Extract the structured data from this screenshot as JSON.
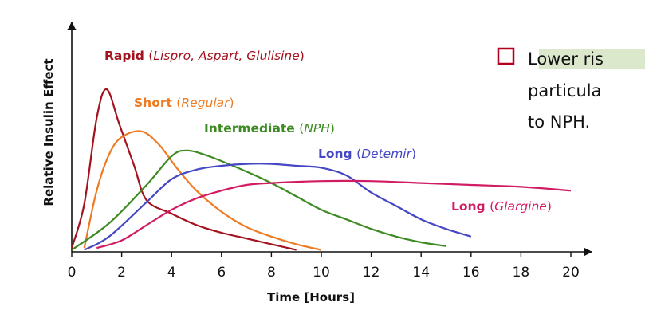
{
  "chart_data": {
    "type": "line",
    "xlabel": "Time [Hours]",
    "ylabel": "Relative Insulin Effect",
    "xlim": [
      0,
      20
    ],
    "ylim": [
      0,
      100
    ],
    "x_ticks": [
      "0",
      "2",
      "4",
      "6",
      "8",
      "10",
      "12",
      "14",
      "16",
      "18",
      "20"
    ],
    "grid": false,
    "series": [
      {
        "name": "Rapid",
        "sub": "Lispro, Aspart, Glulisine",
        "color": "#a3131f",
        "points": [
          [
            0,
            2
          ],
          [
            0.5,
            25
          ],
          [
            1,
            70
          ],
          [
            1.4,
            85
          ],
          [
            1.9,
            67
          ],
          [
            2.5,
            45
          ],
          [
            3,
            27
          ],
          [
            4,
            20
          ],
          [
            5,
            14
          ],
          [
            6,
            10
          ],
          [
            7,
            7
          ],
          [
            8,
            4
          ],
          [
            9,
            1
          ]
        ]
      },
      {
        "name": "Short",
        "sub": "Regular",
        "color": "#ee7a22",
        "points": [
          [
            0.5,
            2
          ],
          [
            1,
            32
          ],
          [
            1.5,
            51
          ],
          [
            2,
            60
          ],
          [
            2.8,
            63
          ],
          [
            3.5,
            56
          ],
          [
            4.2,
            44
          ],
          [
            5,
            32
          ],
          [
            6,
            21
          ],
          [
            7,
            13
          ],
          [
            8,
            8
          ],
          [
            9,
            4
          ],
          [
            10,
            1
          ]
        ]
      },
      {
        "name": "Intermediate",
        "sub": "NPH",
        "color": "#3d8a23",
        "points": [
          [
            0,
            1
          ],
          [
            1.5,
            15
          ],
          [
            3,
            35
          ],
          [
            4,
            50
          ],
          [
            4.6,
            53
          ],
          [
            5.5,
            50
          ],
          [
            7,
            42
          ],
          [
            8,
            36
          ],
          [
            9,
            29
          ],
          [
            10,
            22
          ],
          [
            11,
            17
          ],
          [
            12,
            12
          ],
          [
            13,
            8
          ],
          [
            14,
            5
          ],
          [
            15,
            3
          ]
        ]
      },
      {
        "name": "Long",
        "sub": "Detemir",
        "color": "#4547c4",
        "points": [
          [
            0.5,
            1
          ],
          [
            1.5,
            8
          ],
          [
            3,
            26
          ],
          [
            4,
            38
          ],
          [
            5,
            43
          ],
          [
            6,
            45
          ],
          [
            7,
            46
          ],
          [
            8,
            46
          ],
          [
            9,
            45
          ],
          [
            10,
            44
          ],
          [
            11,
            40
          ],
          [
            12,
            31
          ],
          [
            13,
            24
          ],
          [
            14,
            17
          ],
          [
            15,
            12
          ],
          [
            16,
            8
          ]
        ]
      },
      {
        "name": "Long",
        "sub": "Glargine",
        "color": "#d11c64",
        "points": [
          [
            1,
            2
          ],
          [
            2,
            6
          ],
          [
            3,
            14
          ],
          [
            4,
            22
          ],
          [
            5,
            28
          ],
          [
            6,
            32
          ],
          [
            7,
            35
          ],
          [
            8,
            36
          ],
          [
            10,
            37
          ],
          [
            12,
            37
          ],
          [
            14,
            36
          ],
          [
            16,
            35
          ],
          [
            18,
            34
          ],
          [
            20,
            32
          ]
        ]
      }
    ]
  },
  "side_note": {
    "line1": "Lower ris",
    "line2": "particula",
    "line3": "to NPH.",
    "accent_color": "#b2001d"
  }
}
